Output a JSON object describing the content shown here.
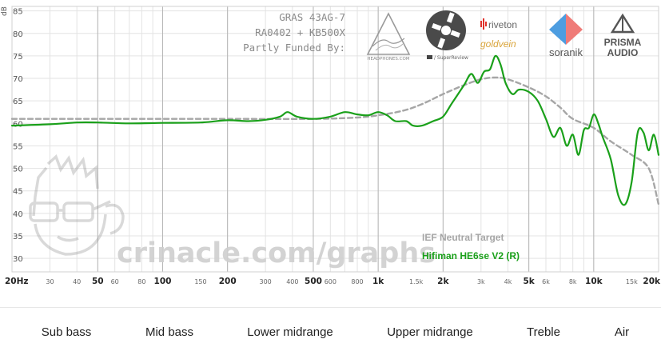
{
  "header": {
    "rig_line1": "GRAS 43AG-7",
    "rig_line2": "RA0402 + KB500X",
    "funded_by": "Partly Funded By:"
  },
  "sponsors": {
    "headphones_com": "HEADPHONES.COM",
    "superreview": "/ SuperReview",
    "riveton": "riveton",
    "goldvein": "goldvein",
    "soranik": "soranik",
    "prisma_line1": "PRISMA",
    "prisma_line2": "AUDIO"
  },
  "watermark": "crinacle.com/graphs",
  "colors": {
    "target": "#a6a6a6",
    "measurement": "#1aa01a",
    "grid": "#e3e3e3",
    "major_grid": "#b5b5b5"
  },
  "bands": [
    "Sub bass",
    "Mid bass",
    "Lower midrange",
    "Upper midrange",
    "Treble",
    "Air"
  ],
  "chart_data": {
    "type": "line",
    "yunit": "dB",
    "xscale": "log",
    "xlim": [
      20,
      20000
    ],
    "ylim": [
      27,
      86
    ],
    "yticks": [
      30,
      35,
      40,
      45,
      50,
      55,
      60,
      65,
      70,
      75,
      80,
      85
    ],
    "xticks": [
      {
        "v": 20,
        "label": "20Hz",
        "major": true
      },
      {
        "v": 30,
        "label": "30",
        "major": false
      },
      {
        "v": 40,
        "label": "40",
        "major": false
      },
      {
        "v": 50,
        "label": "50",
        "major": true
      },
      {
        "v": 60,
        "label": "60",
        "major": false
      },
      {
        "v": 80,
        "label": "80",
        "major": false
      },
      {
        "v": 100,
        "label": "100",
        "major": true
      },
      {
        "v": 150,
        "label": "150",
        "major": false
      },
      {
        "v": 200,
        "label": "200",
        "major": true
      },
      {
        "v": 300,
        "label": "300",
        "major": false
      },
      {
        "v": 400,
        "label": "400",
        "major": false
      },
      {
        "v": 500,
        "label": "500",
        "major": true
      },
      {
        "v": 600,
        "label": "600",
        "major": false
      },
      {
        "v": 800,
        "label": "800",
        "major": false
      },
      {
        "v": 1000,
        "label": "1k",
        "major": true
      },
      {
        "v": 1500,
        "label": "1.5k",
        "major": false
      },
      {
        "v": 2000,
        "label": "2k",
        "major": true
      },
      {
        "v": 3000,
        "label": "3k",
        "major": false
      },
      {
        "v": 4000,
        "label": "4k",
        "major": false
      },
      {
        "v": 5000,
        "label": "5k",
        "major": true
      },
      {
        "v": 6000,
        "label": "6k",
        "major": false
      },
      {
        "v": 8000,
        "label": "8k",
        "major": false
      },
      {
        "v": 10000,
        "label": "10k",
        "major": true
      },
      {
        "v": 15000,
        "label": "15k",
        "major": false
      },
      {
        "v": 20000,
        "label": "20k",
        "major": true
      }
    ],
    "legend_position": "bottom-right",
    "series": [
      {
        "name": "IEF Neutral Target",
        "style": "dashed",
        "x": [
          20,
          50,
          100,
          200,
          500,
          800,
          1000,
          1300,
          1600,
          2000,
          2500,
          3000,
          3500,
          4000,
          5000,
          6000,
          7000,
          8000,
          10000,
          12000,
          15000,
          18000,
          20000
        ],
        "y": [
          61,
          61,
          61,
          61,
          61,
          61.3,
          61.8,
          62.8,
          64.3,
          66.5,
          68.5,
          69.8,
          70.2,
          69.8,
          68,
          66,
          63.5,
          61,
          59,
          56,
          53,
          50,
          42
        ]
      },
      {
        "name": "Hifiman HE6se V2 (R)",
        "style": "solid",
        "x": [
          20,
          30,
          40,
          50,
          70,
          100,
          150,
          200,
          250,
          300,
          350,
          380,
          420,
          500,
          600,
          700,
          800,
          900,
          1000,
          1100,
          1200,
          1350,
          1450,
          1600,
          1800,
          2000,
          2200,
          2500,
          2700,
          2900,
          3100,
          3300,
          3500,
          3700,
          3900,
          4200,
          4500,
          5000,
          5500,
          6000,
          6500,
          7000,
          7500,
          8000,
          8500,
          9000,
          9500,
          10000,
          10500,
          11000,
          12000,
          13000,
          14000,
          15000,
          16000,
          17000,
          18000,
          19000,
          20000
        ],
        "y": [
          59.5,
          59.8,
          60.2,
          60.2,
          60,
          60.1,
          60.2,
          60.7,
          60.5,
          60.8,
          61.5,
          62.5,
          61.5,
          61,
          61.5,
          62.5,
          62,
          61.8,
          62.5,
          61.8,
          60.5,
          60.5,
          59.5,
          59.5,
          60.5,
          61.5,
          64.5,
          68.5,
          71,
          69,
          71.5,
          72,
          75,
          73,
          69,
          66.5,
          67.5,
          67,
          65,
          61,
          57,
          59,
          55,
          57.5,
          53,
          58.5,
          59,
          62,
          60,
          57,
          52,
          44,
          42,
          47,
          58,
          58,
          54,
          57.5,
          53
        ]
      }
    ]
  }
}
